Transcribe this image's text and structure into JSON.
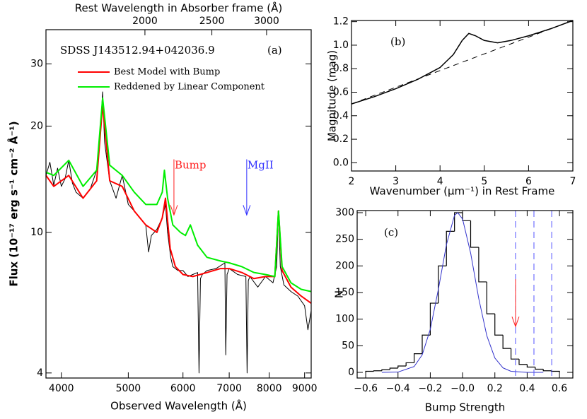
{
  "chart_data": [
    {
      "type": "line",
      "title": "SDSS J143512.94+042036.9",
      "panel_label": "(a)",
      "xlabel": "Observed Wavelength (Å)",
      "ylabel": "Flux (10⁻¹⁷ erg s⁻¹ cm⁻² Å⁻¹)",
      "x2label": "Rest Wavelength in Absorber frame (Å)",
      "xlim": [
        3800,
        9200
      ],
      "xlog": true,
      "xticks": [
        4000,
        5000,
        6000,
        7000,
        8000,
        9000
      ],
      "x2lim": [
        1438,
        3481
      ],
      "x2log": true,
      "x2ticks": [
        2000,
        2500,
        3000
      ],
      "ylim": [
        3.87,
        37.5
      ],
      "ylog": true,
      "yticks": [
        4,
        10,
        20,
        30
      ],
      "series": [
        {
          "color": "#000000",
          "width": 1,
          "x": [
            3800,
            3850,
            3900,
            3950,
            4000,
            4050,
            4100,
            4150,
            4200,
            4300,
            4400,
            4500,
            4560,
            4590,
            4620,
            4700,
            4800,
            4900,
            5000,
            5100,
            5200,
            5300,
            5350,
            5400,
            5500,
            5600,
            5660,
            5700,
            5760,
            5800,
            5900,
            6000,
            6100,
            6200,
            6300,
            6330,
            6360,
            6400,
            6500,
            6700,
            6900,
            6920,
            6950,
            7000,
            7200,
            7400,
            7430,
            7460,
            7500,
            7700,
            7900,
            8100,
            8200,
            8250,
            8300,
            8400,
            8600,
            8800,
            9000,
            9100,
            9200
          ],
          "values": [
            14.5,
            15.8,
            13.6,
            15.2,
            13.5,
            14.2,
            16,
            13.8,
            13,
            12.5,
            13.2,
            15,
            20,
            25,
            18,
            14,
            12.5,
            14.5,
            12,
            11.5,
            11,
            10.5,
            8.8,
            9.8,
            10.2,
            11,
            12,
            10,
            8.5,
            8,
            7.8,
            7.8,
            7.5,
            7.6,
            7.7,
            4,
            7.4,
            7.6,
            7.8,
            7.9,
            8.2,
            4.5,
            7.6,
            7.9,
            7.6,
            7.5,
            4,
            7.3,
            7.5,
            7,
            7.5,
            7.2,
            8,
            11.5,
            8,
            7.1,
            6.8,
            6.6,
            6.2,
            5.3,
            6
          ]
        },
        {
          "name": "Best Model with Bump",
          "color": "#ff0000",
          "width": 2,
          "x": [
            3800,
            3900,
            4100,
            4300,
            4500,
            4590,
            4700,
            4900,
            5100,
            5300,
            5500,
            5600,
            5660,
            5750,
            5850,
            6000,
            6200,
            6500,
            6800,
            7000,
            7300,
            7600,
            7900,
            8150,
            8250,
            8350,
            8600,
            8900,
            9200
          ],
          "values": [
            14.5,
            13.5,
            14.5,
            12.5,
            14,
            23,
            14,
            13.5,
            11.5,
            10.5,
            10,
            11,
            12.5,
            9,
            8,
            7.6,
            7.5,
            7.7,
            7.9,
            7.9,
            7.7,
            7.4,
            7.5,
            7.5,
            11.5,
            7.8,
            7,
            6.6,
            6.3
          ]
        },
        {
          "name": "Reddened by Linear Component",
          "color": "#00ee00",
          "width": 2,
          "x": [
            3800,
            3900,
            4100,
            4300,
            4500,
            4590,
            4700,
            4900,
            5100,
            5300,
            5500,
            5600,
            5640,
            5700,
            5800,
            5950,
            6050,
            6150,
            6300,
            6500,
            6800,
            7000,
            7300,
            7600,
            7900,
            8150,
            8250,
            8350,
            8600,
            8900,
            9200
          ],
          "values": [
            14.8,
            14.5,
            16,
            13.5,
            15,
            24,
            15.5,
            14.5,
            13,
            12,
            12,
            13,
            15,
            12.5,
            10.5,
            10,
            9.8,
            10.5,
            9.2,
            8.5,
            8.3,
            8.2,
            8,
            7.7,
            7.6,
            7.5,
            11.5,
            8,
            7.2,
            6.9,
            6.8
          ]
        }
      ],
      "arrows": [
        {
          "text": "Bump",
          "color": "#ff2020",
          "x": 5822,
          "y": [
            16.1,
            11.2
          ]
        },
        {
          "text": "MgII",
          "color": "#3030ff",
          "x": 7421,
          "y": [
            16.1,
            11.2
          ]
        }
      ]
    },
    {
      "type": "line",
      "panel_label": "(b)",
      "xlabel": "Wavenumber (μm⁻¹) in Rest Frame",
      "ylabel": "Magnitude (mag)",
      "xlim": [
        2,
        7
      ],
      "xticks": [
        2,
        3,
        4,
        5,
        6,
        7
      ],
      "ylim": [
        -0.07,
        1.21
      ],
      "yticks": [
        {
          "value": 0,
          "label": "0.0"
        },
        0.2,
        0.4,
        0.6,
        0.8,
        {
          "value": 1,
          "label": "1.0"
        },
        1.2
      ],
      "series": [
        {
          "color": "#000000",
          "width": 1.5,
          "x": [
            2,
            2.5,
            3,
            3.5,
            4,
            4.3,
            4.5,
            4.65,
            4.8,
            5,
            5.3,
            5.6,
            6,
            6.5,
            7
          ],
          "values": [
            0.5,
            0.56,
            0.63,
            0.71,
            0.81,
            0.92,
            1.04,
            1.1,
            1.08,
            1.04,
            1.02,
            1.04,
            1.08,
            1.14,
            1.21
          ]
        },
        {
          "color": "#000000",
          "width": 1,
          "linestyle": "dashed",
          "x": [
            2,
            7
          ],
          "values": [
            0.5,
            1.21
          ]
        }
      ]
    },
    {
      "type": "histogram",
      "panel_label": "(c)",
      "xlabel": "Bump Strength",
      "ylabel": "N",
      "xlim": [
        -0.653,
        0.683
      ],
      "xticks": [
        {
          "value": -0.6,
          "label": "−0.6"
        },
        {
          "value": -0.4,
          "label": "−0.4"
        },
        {
          "value": -0.2,
          "label": "−0.2"
        },
        {
          "value": 0,
          "label": "−0.0"
        },
        0.2,
        0.4,
        0.6
      ],
      "ylim": [
        -10.6,
        304
      ],
      "yticks": [
        0,
        50,
        100,
        150,
        200,
        250,
        300
      ],
      "color": "#000000",
      "bins": [
        -0.6,
        -0.55,
        -0.5,
        -0.45,
        -0.4,
        -0.35,
        -0.3,
        -0.25,
        -0.2,
        -0.15,
        -0.1,
        -0.05,
        0,
        0.05,
        0.1,
        0.15,
        0.2,
        0.25,
        0.3,
        0.35,
        0.4,
        0.45,
        0.5,
        0.55,
        0.6
      ],
      "values": [
        2,
        3,
        5,
        8,
        12,
        18,
        35,
        70,
        130,
        200,
        265,
        300,
        285,
        235,
        170,
        110,
        70,
        45,
        25,
        15,
        10,
        6,
        3,
        2
      ],
      "series": [
        {
          "color": "#3333cc",
          "width": 1,
          "x": [
            -0.5,
            -0.4,
            -0.3,
            -0.25,
            -0.2,
            -0.15,
            -0.1,
            -0.05,
            -0.03,
            0,
            0.05,
            0.1,
            0.15,
            0.2,
            0.25,
            0.3,
            0.4,
            0.5
          ],
          "values": [
            0,
            0.6,
            11,
            33,
            81,
            156,
            240,
            295,
            300,
            288,
            224,
            139,
            69,
            27,
            8.5,
            2,
            0,
            0
          ]
        }
      ],
      "vlines": [
        0.328,
        0.442,
        0.552
      ],
      "vline_color": "#5555ff",
      "arrows": [
        {
          "color": "#ff2020",
          "x": 0.328,
          "y": [
            175,
            86
          ]
        }
      ]
    }
  ]
}
